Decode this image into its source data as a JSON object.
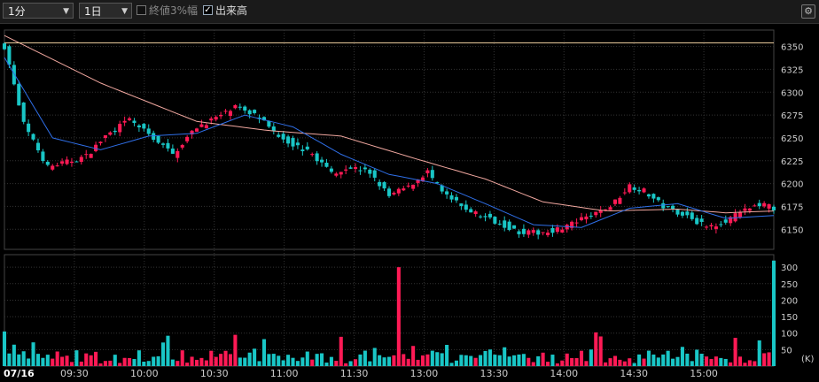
{
  "toolbar": {
    "interval": "1分",
    "period": "1日",
    "option_label": "終値3%幅",
    "option_checked": false,
    "volume_label": "出来高",
    "volume_checked": true
  },
  "chart_data": [
    {
      "type": "candlestick",
      "title": "",
      "date_label": "07/16",
      "x_ticks": [
        "09:30",
        "10:00",
        "10:30",
        "11:00",
        "11:30",
        "13:00",
        "13:30",
        "14:00",
        "14:30",
        "15:00"
      ],
      "y_ticks": [
        6150,
        6175,
        6200,
        6225,
        6250,
        6275,
        6300,
        6325,
        6350
      ],
      "ylim": [
        6128,
        6368
      ],
      "reference_line": 6354,
      "colors": {
        "up": "#ff1a55",
        "down": "#19c6c6",
        "ma_short": "#2f6fe8",
        "ma_long": "#f2a8a0",
        "ref": "#e8c89a"
      },
      "close_path": [
        [
          0,
          6350
        ],
        [
          4,
          6265
        ],
        [
          9,
          6218
        ],
        [
          14,
          6225
        ],
        [
          17,
          6230
        ],
        [
          21,
          6252
        ],
        [
          26,
          6270
        ],
        [
          31,
          6250
        ],
        [
          35,
          6232
        ],
        [
          40,
          6262
        ],
        [
          44,
          6272
        ],
        [
          48,
          6283
        ],
        [
          52,
          6276
        ],
        [
          56,
          6257
        ],
        [
          60,
          6243
        ],
        [
          64,
          6232
        ],
        [
          68,
          6212
        ],
        [
          72,
          6218
        ],
        [
          76,
          6212
        ],
        [
          80,
          6186
        ],
        [
          84,
          6197
        ],
        [
          88,
          6213
        ],
        [
          91,
          6190
        ],
        [
          95,
          6175
        ],
        [
          99,
          6165
        ],
        [
          103,
          6157
        ],
        [
          107,
          6147
        ],
        [
          111,
          6146
        ],
        [
          115,
          6150
        ],
        [
          119,
          6158
        ],
        [
          122,
          6165
        ],
        [
          126,
          6175
        ],
        [
          130,
          6198
        ],
        [
          133,
          6192
        ],
        [
          137,
          6175
        ],
        [
          142,
          6165
        ],
        [
          146,
          6152
        ],
        [
          150,
          6160
        ],
        [
          154,
          6170
        ],
        [
          157,
          6178
        ],
        [
          160,
          6173
        ]
      ],
      "ma_short_path": [
        [
          0,
          6338
        ],
        [
          10,
          6250
        ],
        [
          20,
          6237
        ],
        [
          30,
          6252
        ],
        [
          40,
          6255
        ],
        [
          50,
          6275
        ],
        [
          60,
          6262
        ],
        [
          70,
          6232
        ],
        [
          80,
          6210
        ],
        [
          90,
          6200
        ],
        [
          100,
          6178
        ],
        [
          110,
          6155
        ],
        [
          120,
          6152
        ],
        [
          130,
          6173
        ],
        [
          140,
          6178
        ],
        [
          150,
          6162
        ],
        [
          160,
          6165
        ]
      ],
      "ma_long_path": [
        [
          0,
          6362
        ],
        [
          20,
          6310
        ],
        [
          40,
          6268
        ],
        [
          55,
          6258
        ],
        [
          70,
          6252
        ],
        [
          85,
          6228
        ],
        [
          100,
          6205
        ],
        [
          112,
          6180
        ],
        [
          125,
          6170
        ],
        [
          140,
          6172
        ],
        [
          150,
          6168
        ],
        [
          160,
          6170
        ]
      ]
    },
    {
      "type": "bar",
      "title": "",
      "y_ticks": [
        50,
        100,
        150,
        200,
        250,
        300
      ],
      "unit_label": "(K)",
      "ylim": [
        0,
        338
      ],
      "volume_spikes": [
        [
          0,
          105
        ],
        [
          2,
          65
        ],
        [
          6,
          72
        ],
        [
          82,
          300
        ],
        [
          160,
          320
        ]
      ]
    }
  ]
}
